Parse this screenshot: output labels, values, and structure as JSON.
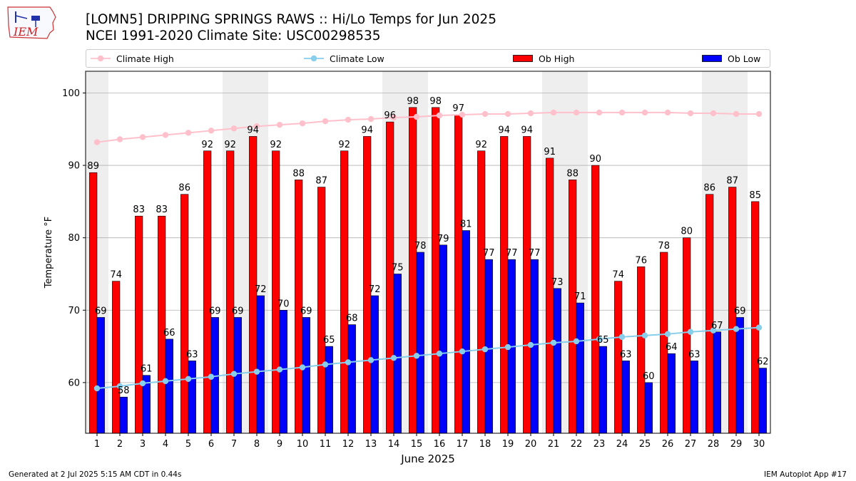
{
  "header": {
    "title_line1": "[LOMN5] DRIPPING SPRINGS RAWS :: Hi/Lo Temps for Jun 2025",
    "title_line2": "NCEI 1991-2020 Climate Site: USC00298535",
    "logo_text": "IEM"
  },
  "legend": {
    "climate_high": "Climate High",
    "climate_low": "Climate Low",
    "ob_high": "Ob High",
    "ob_low": "Ob Low"
  },
  "colors": {
    "climate_high": "#ffc0cb",
    "climate_low": "#87ceeb",
    "ob_high": "#ff0000",
    "ob_low": "#0000ff",
    "weekend_band": "#eeeeee",
    "grid": "#b0b0b0"
  },
  "footer": {
    "left": "Generated at 2 Jul 2025 5:15 AM CDT in 0.44s",
    "right": "IEM Autoplot App #17"
  },
  "chart_data": {
    "type": "bar",
    "xlabel": "June 2025",
    "ylabel": "Temperature °F",
    "ylim": [
      53,
      103
    ],
    "yticks": [
      60,
      70,
      80,
      90,
      100
    ],
    "grid": "horizontal",
    "legend_position": "top",
    "categories": [
      "1",
      "2",
      "3",
      "4",
      "5",
      "6",
      "7",
      "8",
      "9",
      "10",
      "11",
      "12",
      "13",
      "14",
      "15",
      "16",
      "17",
      "18",
      "19",
      "20",
      "21",
      "22",
      "23",
      "24",
      "25",
      "26",
      "27",
      "28",
      "29",
      "30"
    ],
    "weekend_days": [
      [
        1
      ],
      [
        7,
        8
      ],
      [
        14,
        15
      ],
      [
        21,
        22
      ],
      [
        28,
        29
      ]
    ],
    "series": [
      {
        "name": "Ob High",
        "kind": "bar",
        "color": "#ff0000",
        "values": [
          89,
          74,
          83,
          83,
          86,
          92,
          92,
          94,
          92,
          88,
          87,
          92,
          94,
          96,
          98,
          98,
          97,
          92,
          94,
          94,
          91,
          88,
          90,
          74,
          76,
          78,
          80,
          86,
          87,
          85
        ]
      },
      {
        "name": "Ob Low",
        "kind": "bar",
        "color": "#0000ff",
        "values": [
          69,
          58,
          61,
          66,
          63,
          69,
          69,
          72,
          70,
          69,
          65,
          68,
          72,
          75,
          78,
          79,
          81,
          77,
          77,
          77,
          73,
          71,
          65,
          63,
          60,
          64,
          63,
          67,
          69,
          62
        ]
      },
      {
        "name": "Climate High",
        "kind": "line",
        "color": "#ffc0cb",
        "values": [
          93.2,
          93.6,
          93.9,
          94.2,
          94.5,
          94.8,
          95.1,
          95.4,
          95.6,
          95.8,
          96.1,
          96.3,
          96.4,
          96.6,
          96.7,
          96.9,
          97.0,
          97.1,
          97.1,
          97.2,
          97.3,
          97.3,
          97.3,
          97.3,
          97.3,
          97.3,
          97.2,
          97.2,
          97.1,
          97.1
        ]
      },
      {
        "name": "Climate Low",
        "kind": "line",
        "color": "#87ceeb",
        "values": [
          59.2,
          59.5,
          59.9,
          60.2,
          60.5,
          60.8,
          61.2,
          61.5,
          61.8,
          62.1,
          62.5,
          62.8,
          63.1,
          63.4,
          63.7,
          64.0,
          64.3,
          64.6,
          64.9,
          65.2,
          65.5,
          65.7,
          66.0,
          66.3,
          66.5,
          66.7,
          67.0,
          67.2,
          67.4,
          67.6
        ]
      }
    ]
  }
}
